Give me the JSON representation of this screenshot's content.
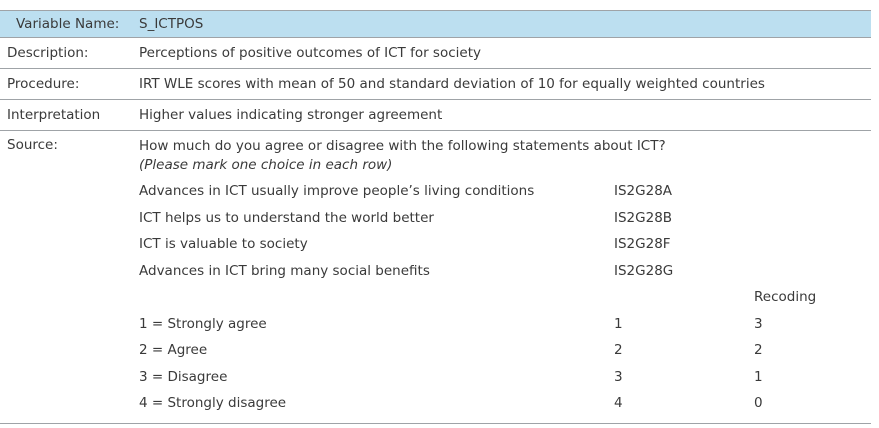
{
  "header": {
    "label": "Variable Name:",
    "value": "S_ICTPOS"
  },
  "rows": [
    {
      "label": "Description:",
      "value": "Perceptions of positive outcomes of ICT for society"
    },
    {
      "label": "Procedure:",
      "value": "IRT WLE scores with mean of 50 and standard deviation of 10 for equally weighted countries"
    },
    {
      "label": "Interpretation",
      "value": "Higher values indicating stronger agreement"
    }
  ],
  "source": {
    "label": "Source:",
    "question": "How much do you agree or disagree with the following statements about ICT?",
    "instruction": "(Please mark one choice in each row)",
    "items": [
      {
        "text": "Advances in ICT usually improve people’s living conditions",
        "code": "IS2G28A"
      },
      {
        "text": "ICT helps us to understand the world better",
        "code": "IS2G28B"
      },
      {
        "text": "ICT is valuable to society",
        "code": "IS2G28F"
      },
      {
        "text": "Advances in ICT bring many social benefits",
        "code": "IS2G28G"
      }
    ],
    "recoding_header": "Recoding",
    "scale": [
      {
        "text": "1 = Strongly agree",
        "value": "1",
        "recode": "3"
      },
      {
        "text": "2 = Agree",
        "value": "2",
        "recode": "2"
      },
      {
        "text": "3 = Disagree",
        "value": "3",
        "recode": "1"
      },
      {
        "text": "4 = Strongly disagree",
        "value": "4",
        "recode": "0"
      }
    ]
  }
}
